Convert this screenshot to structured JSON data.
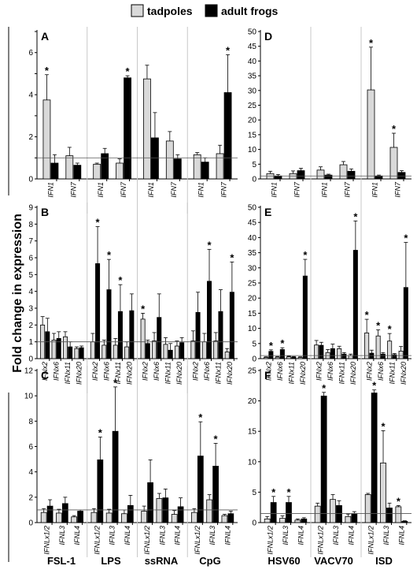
{
  "figure": {
    "y_axis_title": "Fold change in expression",
    "legend": [
      {
        "label": "tadpoles",
        "color": "#d9d9d9"
      },
      {
        "label": "adult frogs",
        "color": "#000000"
      }
    ],
    "left_treatments": [
      "FSL-1",
      "LPS",
      "ssRNA",
      "CpG"
    ],
    "right_treatments": [
      "HSV60",
      "VACV70",
      "ISD"
    ]
  },
  "chart_data": [
    {
      "panel": "A",
      "type": "bar",
      "ylim": [
        0,
        7
      ],
      "yticks": [
        0,
        1,
        2,
        3,
        4,
        5,
        6,
        7
      ],
      "baseline": 1,
      "groups": [
        {
          "treatment": "FSL-1",
          "genes": [
            "IFN1",
            "IFN7"
          ]
        },
        {
          "treatment": "LPS",
          "genes": [
            "IFN1",
            "IFN7"
          ]
        },
        {
          "treatment": "ssRNA",
          "genes": [
            "IFN1",
            "IFN7"
          ]
        },
        {
          "treatment": "CpG",
          "genes": [
            "IFN1",
            "IFN7"
          ]
        }
      ],
      "series": [
        {
          "name": "tadpoles",
          "values": [
            3.75,
            1.1,
            0.7,
            0.75,
            4.75,
            1.8,
            1.15,
            1.2
          ],
          "errors": [
            1.2,
            0.4,
            0.05,
            0.2,
            0.65,
            0.45,
            0.1,
            0.4
          ]
        },
        {
          "name": "adult frogs",
          "values": [
            0.75,
            0.65,
            1.2,
            4.8,
            1.95,
            0.95,
            0.8,
            4.1
          ],
          "errors": [
            0.4,
            0.1,
            0.25,
            0.1,
            1.2,
            0.2,
            0.2,
            1.8
          ]
        }
      ],
      "significant": [
        [
          0,
          "tadpoles"
        ],
        [
          3,
          "adult frogs"
        ],
        [
          7,
          "adult frogs"
        ]
      ]
    },
    {
      "panel": "B",
      "type": "bar",
      "ylim": [
        0,
        9
      ],
      "yticks": [
        0,
        1,
        2,
        3,
        4,
        5,
        6,
        7,
        8,
        9
      ],
      "baseline": 1,
      "groups": [
        {
          "treatment": "FSL-1",
          "genes": [
            "IFNx2",
            "IFNx6",
            "IFNx11",
            "IFNx20"
          ]
        },
        {
          "treatment": "LPS",
          "genes": [
            "IFNx2",
            "IFNx6",
            "IFNx11",
            "IFNx20"
          ]
        },
        {
          "treatment": "ssRNA",
          "genes": [
            "IFNx2",
            "IFNx6",
            "IFNx11",
            "IFNx20"
          ]
        },
        {
          "treatment": "CpG",
          "genes": [
            "IFNx2",
            "IFNx6",
            "IFNx11",
            "IFNx20"
          ]
        }
      ],
      "series": [
        {
          "name": "tadpoles",
          "values": [
            2.0,
            1.1,
            1.3,
            0.6,
            1.0,
            0.8,
            0.8,
            0.7,
            2.35,
            1.05,
            0.85,
            0.75,
            1.05,
            1.0,
            1.05,
            0.4
          ],
          "errors": [
            0.5,
            0.4,
            0.3,
            0.1,
            0.5,
            0.3,
            0.4,
            0.3,
            0.35,
            0.5,
            0.4,
            0.3,
            0.6,
            0.5,
            0.5,
            0.2
          ]
        },
        {
          "name": "adult frogs",
          "values": [
            1.6,
            1.2,
            0.7,
            0.65,
            5.65,
            4.1,
            2.8,
            2.85,
            0.9,
            2.45,
            0.5,
            0.95,
            2.75,
            4.6,
            2.8,
            3.95
          ],
          "errors": [
            0.8,
            0.4,
            0.3,
            0.1,
            2.2,
            1.8,
            1.6,
            1.0,
            0.2,
            1.4,
            0.4,
            0.3,
            1.2,
            1.9,
            1.3,
            1.8
          ]
        }
      ],
      "significant": [
        [
          4,
          "adult frogs"
        ],
        [
          5,
          "adult frogs"
        ],
        [
          6,
          "adult frogs"
        ],
        [
          8,
          "tadpoles"
        ],
        [
          13,
          "adult frogs"
        ],
        [
          15,
          "adult frogs"
        ]
      ]
    },
    {
      "panel": "C",
      "type": "bar",
      "ylim": [
        0,
        12
      ],
      "yticks": [
        0,
        2,
        4,
        6,
        8,
        10,
        12
      ],
      "baseline": 1,
      "groups": [
        {
          "treatment": "FSL-1",
          "genes": [
            "IFNLx1/2",
            "IFNL3",
            "IFNL4"
          ]
        },
        {
          "treatment": "LPS",
          "genes": [
            "IFNLx1/2",
            "IFNL3",
            "IFNL4"
          ]
        },
        {
          "treatment": "ssRNA",
          "genes": [
            "IFNLx1/2",
            "IFNL3",
            "IFNL4"
          ]
        },
        {
          "treatment": "CpG",
          "genes": [
            "IFNLx1/2",
            "IFNL3",
            "IFNL4"
          ]
        }
      ],
      "series": [
        {
          "name": "tadpoles",
          "values": [
            0.8,
            0.75,
            0.45,
            0.8,
            0.75,
            0.7,
            0.9,
            1.9,
            0.65,
            0.8,
            1.8,
            0.55
          ],
          "errors": [
            0.3,
            0.3,
            0.1,
            0.3,
            0.3,
            0.3,
            0.4,
            0.4,
            0.3,
            0.3,
            0.4,
            0.1
          ]
        },
        {
          "name": "adult frogs",
          "values": [
            1.3,
            1.5,
            0.9,
            4.95,
            7.2,
            1.35,
            3.15,
            1.95,
            1.25,
            5.25,
            4.45,
            0.7
          ],
          "errors": [
            0.5,
            0.5,
            0.1,
            1.8,
            3.5,
            0.8,
            1.8,
            0.7,
            0.7,
            2.7,
            1.8,
            0.2
          ]
        }
      ],
      "significant": [
        [
          3,
          "adult frogs"
        ],
        [
          4,
          "adult frogs"
        ],
        [
          9,
          "adult frogs"
        ],
        [
          10,
          "adult frogs"
        ]
      ]
    },
    {
      "panel": "D",
      "type": "bar",
      "ylim": [
        0,
        50
      ],
      "yticks": [
        0,
        5,
        10,
        15,
        20,
        25,
        30,
        35,
        40,
        45,
        50
      ],
      "baseline": 1,
      "groups": [
        {
          "treatment": "HSV60",
          "genes": [
            "IFN1",
            "IFN7"
          ]
        },
        {
          "treatment": "VACV70",
          "genes": [
            "IFN1",
            "IFN7"
          ]
        },
        {
          "treatment": "ISD",
          "genes": [
            "IFN1",
            "IFN7"
          ]
        }
      ],
      "series": [
        {
          "name": "tadpoles",
          "values": [
            1.8,
            1.8,
            3.0,
            4.8,
            30.2,
            10.7
          ],
          "errors": [
            0.8,
            0.9,
            1.1,
            1.1,
            14.5,
            4.8
          ]
        },
        {
          "name": "adult frogs",
          "values": [
            1.0,
            2.8,
            1.3,
            2.6,
            1.0,
            2.2
          ],
          "errors": [
            0.5,
            0.8,
            0.3,
            0.8,
            0.3,
            0.6
          ]
        }
      ],
      "significant": [
        [
          4,
          "tadpoles"
        ],
        [
          5,
          "tadpoles"
        ]
      ]
    },
    {
      "panel": "E",
      "type": "bar",
      "ylim": [
        0,
        50
      ],
      "yticks": [
        0,
        5,
        10,
        15,
        20,
        25,
        30,
        35,
        40,
        45,
        50
      ],
      "baseline": 1,
      "groups": [
        {
          "treatment": "HSV60",
          "genes": [
            "IFNx2",
            "IFNx6",
            "IFNx11",
            "IFNx20"
          ]
        },
        {
          "treatment": "VACV70",
          "genes": [
            "IFNx2",
            "IFNx6",
            "IFNx11",
            "IFNx20"
          ]
        },
        {
          "treatment": "ISD",
          "genes": [
            "IFNx2",
            "IFNx6",
            "IFNx11",
            "IFNx20"
          ]
        }
      ],
      "series": [
        {
          "name": "tadpoles",
          "values": [
            0.4,
            0.5,
            0.6,
            0.4,
            4.5,
            2.0,
            3.3,
            1.0,
            8.5,
            7.5,
            5.8,
            2.5
          ],
          "errors": [
            0.2,
            0.2,
            0.2,
            0.2,
            1.5,
            1.0,
            0.8,
            0.5,
            4.5,
            2.0,
            2.5,
            1.5
          ]
        },
        {
          "name": "adult frogs",
          "values": [
            2.4,
            3.0,
            0.5,
            27.3,
            4.4,
            3.3,
            1.5,
            35.8,
            1.8,
            1.5,
            1.3,
            23.5
          ],
          "errors": [
            0.5,
            0.6,
            0.2,
            5.5,
            1.0,
            1.5,
            0.5,
            9.7,
            1.0,
            0.5,
            0.4,
            14.9
          ]
        }
      ],
      "significant": [
        [
          0,
          "adult frogs"
        ],
        [
          1,
          "adult frogs"
        ],
        [
          3,
          "adult frogs"
        ],
        [
          7,
          "adult frogs"
        ],
        [
          8,
          "tadpoles"
        ],
        [
          9,
          "tadpoles"
        ],
        [
          10,
          "tadpoles"
        ],
        [
          11,
          "adult frogs"
        ]
      ]
    },
    {
      "panel": "F",
      "type": "bar",
      "ylim": [
        0,
        25
      ],
      "yticks": [
        0,
        5,
        10,
        15,
        20,
        25
      ],
      "baseline": 1.5,
      "groups": [
        {
          "treatment": "HSV60",
          "genes": [
            "IFNLx1/2",
            "IFNL3",
            "IFNL4"
          ]
        },
        {
          "treatment": "VACV70",
          "genes": [
            "IFNLx1/2",
            "IFNL3",
            "IFNL4"
          ]
        },
        {
          "treatment": "ISD",
          "genes": [
            "IFNLx1/2",
            "IFNL3",
            "IFNL4"
          ]
        }
      ],
      "series": [
        {
          "name": "tadpoles",
          "values": [
            0.6,
            0.7,
            0.4,
            2.7,
            3.8,
            1.0,
            4.6,
            9.8,
            2.6
          ],
          "errors": [
            0.4,
            0.4,
            0.2,
            0.5,
            0.8,
            0.4,
            0.2,
            5.3,
            0.2
          ]
        },
        {
          "name": "adult frogs",
          "values": [
            3.3,
            3.3,
            0.6,
            20.8,
            2.8,
            1.4,
            21.3,
            2.4,
            0.2
          ],
          "errors": [
            1.0,
            1.0,
            0.2,
            0.6,
            0.8,
            0.4,
            0.5,
            0.8,
            0.1
          ]
        }
      ],
      "significant": [
        [
          0,
          "adult frogs"
        ],
        [
          1,
          "adult frogs"
        ],
        [
          3,
          "adult frogs"
        ],
        [
          6,
          "adult frogs"
        ],
        [
          7,
          "tadpoles"
        ],
        [
          8,
          "tadpoles"
        ]
      ]
    }
  ]
}
